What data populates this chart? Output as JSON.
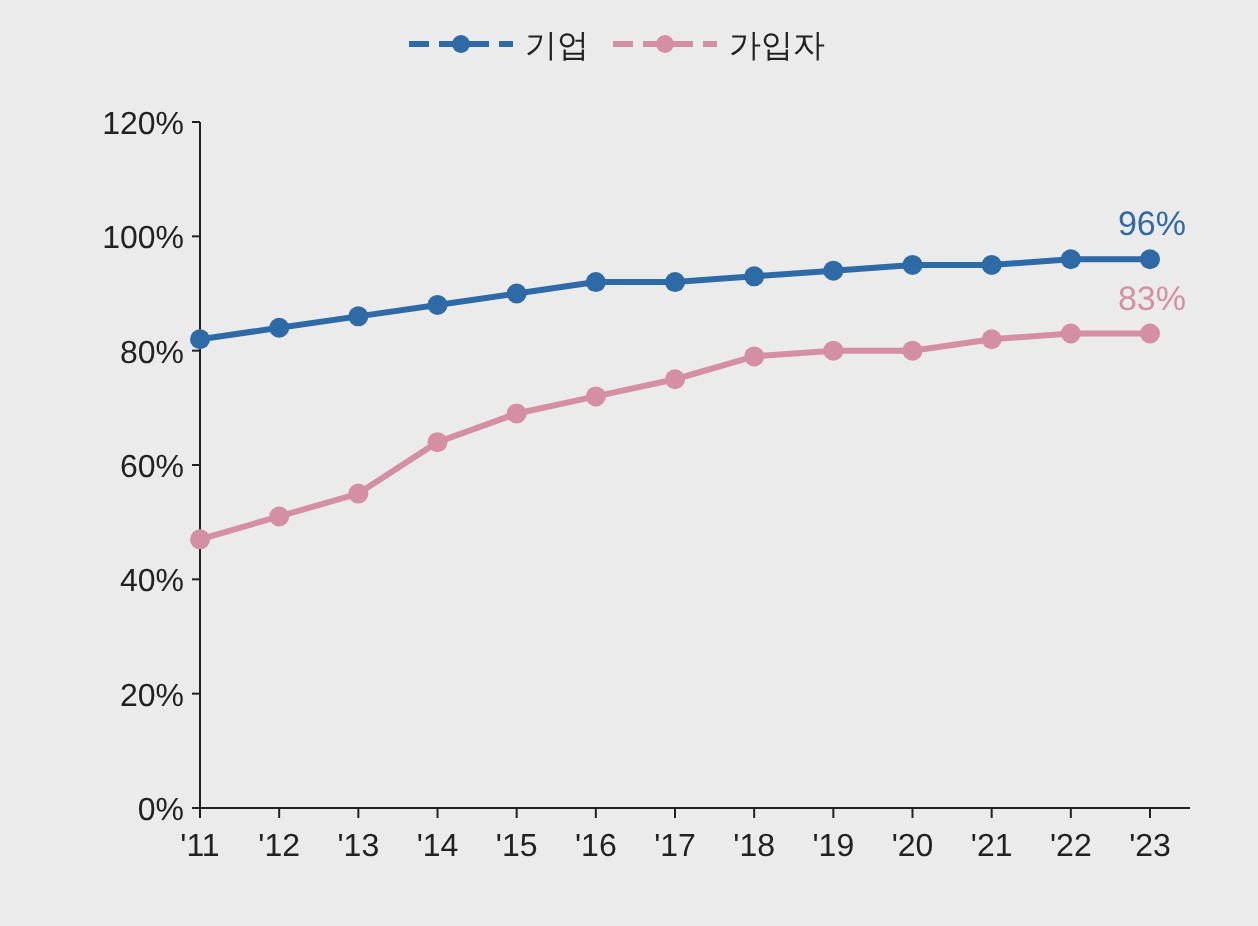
{
  "chart_data": {
    "type": "line",
    "categories": [
      "'11",
      "'12",
      "'13",
      "'14",
      "'15",
      "'16",
      "'17",
      "'18",
      "'19",
      "'20",
      "'21",
      "'22",
      "'23"
    ],
    "series": [
      {
        "name": "기업",
        "color": "#2e6aa6",
        "values": [
          82,
          84,
          86,
          88,
          90,
          92,
          92,
          93,
          94,
          95,
          95,
          96,
          96
        ]
      },
      {
        "name": "가입자",
        "color": "#d48fa3",
        "values": [
          47,
          51,
          55,
          64,
          69,
          72,
          75,
          79,
          80,
          80,
          82,
          83,
          83
        ]
      }
    ],
    "ylim": [
      0,
      120
    ],
    "yticks": [
      {
        "value": 0,
        "label": "0%"
      },
      {
        "value": 20,
        "label": "20%"
      },
      {
        "value": 40,
        "label": "40%"
      },
      {
        "value": 60,
        "label": "60%"
      },
      {
        "value": 80,
        "label": "80%"
      },
      {
        "value": 100,
        "label": "100%"
      },
      {
        "value": 120,
        "label": "120%"
      }
    ],
    "annotations": [
      {
        "text": "96%",
        "x": "'23",
        "y": 96
      },
      {
        "text": "83%",
        "x": "'23",
        "y": 83
      }
    ],
    "legend": "top",
    "marker": "circle"
  }
}
